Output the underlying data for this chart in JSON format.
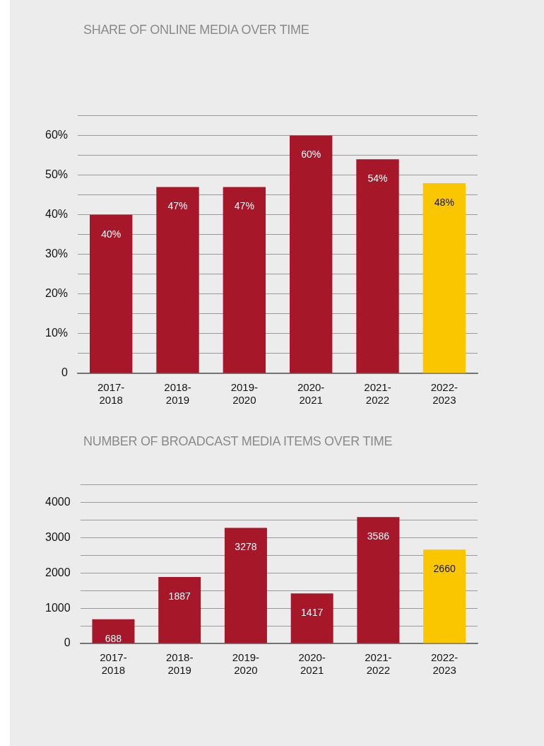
{
  "chart_data": [
    {
      "type": "bar",
      "title": "SHARE OF ONLINE MEDIA OVER TIME",
      "categories": [
        "2017-2018",
        "2018-2019",
        "2019-2020",
        "2020-2021",
        "2021-2022",
        "2022-2023"
      ],
      "values": [
        40,
        47,
        47,
        60,
        54,
        48
      ],
      "colors": [
        "#a51729",
        "#a51729",
        "#a51729",
        "#a51729",
        "#a51729",
        "#f9c600"
      ],
      "value_labels": [
        "40%",
        "47%",
        "47%",
        "60%",
        "54%",
        "48%"
      ],
      "ylim": [
        0,
        65
      ],
      "yticks": [
        0,
        {
          "value": 5,
          "label": null
        },
        {
          "value": 10,
          "label": "10%"
        },
        {
          "value": 15,
          "label": null
        },
        {
          "value": 20,
          "label": "20%"
        },
        {
          "value": 25,
          "label": null
        },
        {
          "value": 30,
          "label": "30%"
        },
        {
          "value": 35,
          "label": null
        },
        {
          "value": 40,
          "label": "40%"
        },
        {
          "value": 45,
          "label": null
        },
        {
          "value": 50,
          "label": "50%"
        },
        {
          "value": 55,
          "label": null
        },
        {
          "value": 60,
          "label": "60%"
        },
        {
          "value": 65,
          "label": null
        }
      ],
      "grid": "y"
    },
    {
      "type": "bar",
      "title": "NUMBER OF BROADCAST MEDIA ITEMS OVER TIME",
      "categories": [
        "2017-2018",
        "2018-2019",
        "2019-2020",
        "2020-2021",
        "2021-2022",
        "2022-2023"
      ],
      "values": [
        688,
        1887,
        3278,
        1417,
        3586,
        2660
      ],
      "colors": [
        "#a51729",
        "#a51729",
        "#a51729",
        "#a51729",
        "#a51729",
        "#f9c600"
      ],
      "data_labels": true,
      "ylim": [
        0,
        4500
      ],
      "yticks": [
        0,
        {
          "value": 500,
          "label": null
        },
        1000,
        {
          "value": 1500,
          "label": null
        },
        2000,
        {
          "value": 2500,
          "label": null
        },
        3000,
        {
          "value": 3500,
          "label": null
        },
        4000,
        {
          "value": 4500,
          "label": null
        }
      ],
      "grid": "y"
    }
  ]
}
